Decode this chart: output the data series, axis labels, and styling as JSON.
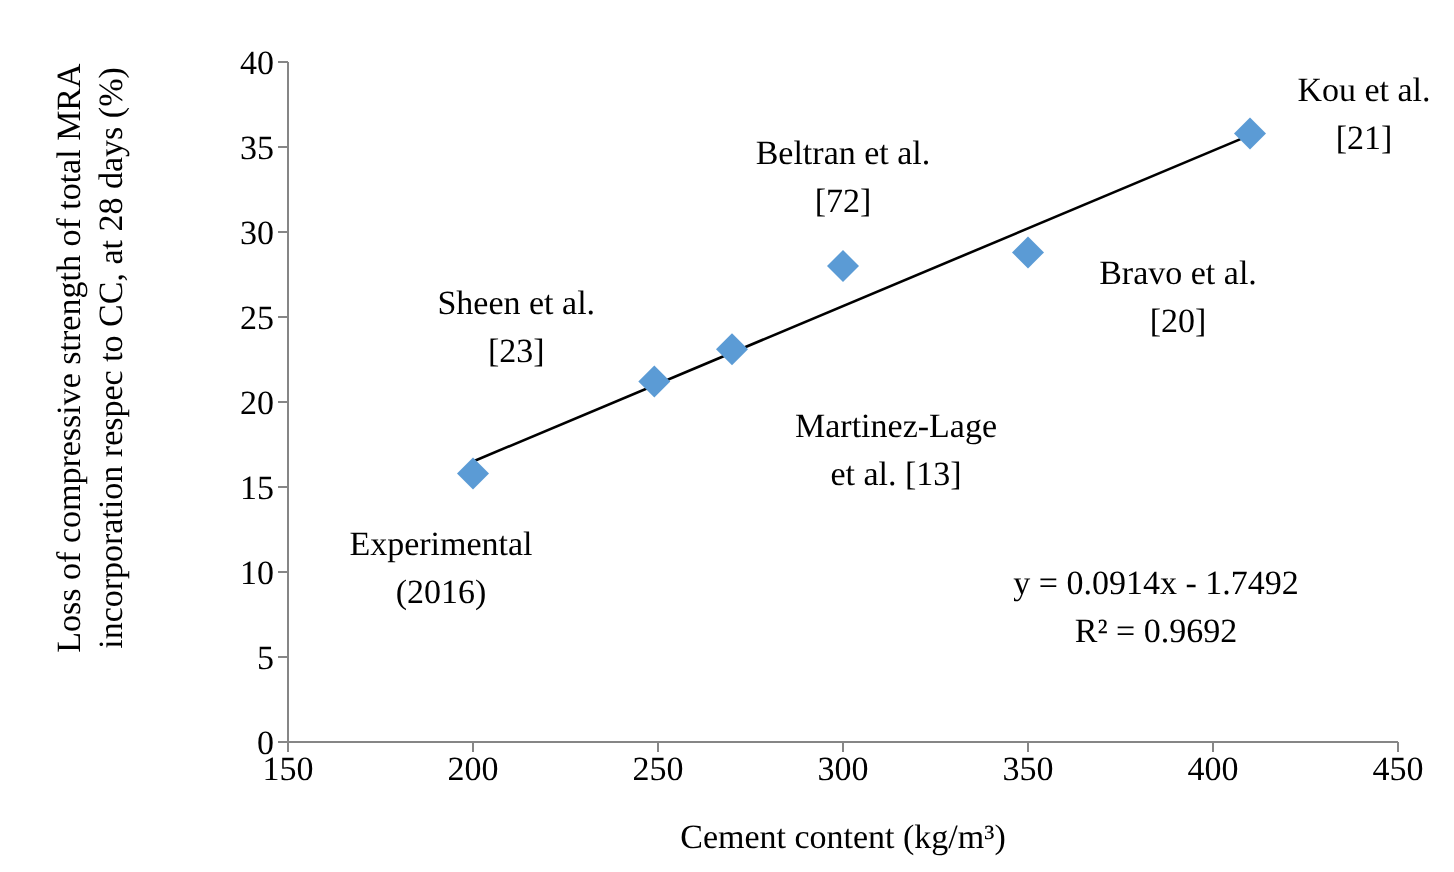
{
  "chart_data": {
    "type": "scatter",
    "xlabel": "Cement content (kg/m³)",
    "ylabel": "Loss of compressive strength of total MRA incorporation respec to CC, at 28 days (%)",
    "xlim": [
      150,
      450
    ],
    "xticks": [
      150,
      200,
      250,
      300,
      350,
      400,
      450
    ],
    "ylim": [
      0,
      40
    ],
    "yticks": [
      0,
      5,
      10,
      15,
      20,
      25,
      30,
      35,
      40
    ],
    "grid": false,
    "legend": false,
    "marker": "diamond",
    "series": [
      {
        "type": "scatter",
        "color": "#5b9bd5",
        "x": [
          200,
          249,
          270,
          300,
          350,
          410
        ],
        "values": [
          15.8,
          21.2,
          23.1,
          28.0,
          28.8,
          35.8
        ]
      },
      {
        "type": "line",
        "color": "#000000",
        "marker": "none",
        "line_style": "solid",
        "x": [
          200,
          410
        ],
        "values": [
          16.5,
          35.7
        ]
      }
    ],
    "annotations": [
      {
        "text": "Experimental\n(2016)",
        "x": 200,
        "y": 15.8
      },
      {
        "text": "Sheen et al.\n[23]",
        "x": 249,
        "y": 21.2
      },
      {
        "text": "Martinez-Lage\net al. [13]",
        "x": 270,
        "y": 23.1
      },
      {
        "text": "Beltran et al.\n[72]",
        "x": 300,
        "y": 28.0
      },
      {
        "text": "Bravo et al.\n[20]",
        "x": 350,
        "y": 28.8
      },
      {
        "text": "Kou et al.\n[21]",
        "x": 410,
        "y": 35.8
      },
      "y = 0.0914x - 1.7492",
      "R² = 0.9692"
    ]
  }
}
